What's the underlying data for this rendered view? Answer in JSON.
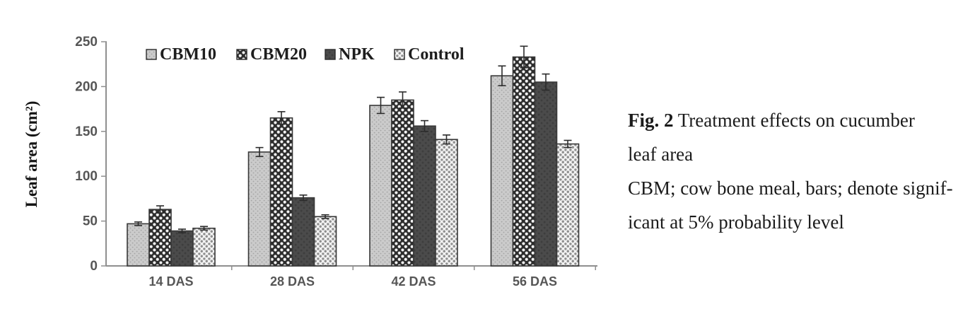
{
  "figure": {
    "fig_label": "Fig. 2",
    "title_rest": " Treatment effects on cucumber",
    "line2": "leaf area",
    "line3": "CBM; cow bone meal, bars; denote signif-",
    "line4": "icant at 5% probability level"
  },
  "chart_data": {
    "type": "bar",
    "title": "",
    "xlabel": "",
    "ylabel": "Leaf area (cm²)",
    "ylim": [
      0,
      250
    ],
    "yticks": [
      0,
      50,
      100,
      150,
      200,
      250
    ],
    "categories": [
      "14 DAS",
      "28 DAS",
      "42 DAS",
      "56 DAS"
    ],
    "series": [
      {
        "name": "CBM10",
        "values": [
          47,
          127,
          179,
          212
        ],
        "errors": [
          2,
          5,
          9,
          11
        ],
        "style": {
          "base": "#cbcbcb",
          "dot": "#a3a3a3",
          "dot_r": 0.9,
          "tile": 6
        }
      },
      {
        "name": "CBM20",
        "values": [
          63,
          165,
          185,
          233
        ],
        "errors": [
          4,
          7,
          9,
          12
        ],
        "style": {
          "base": "#2d2d2d",
          "dot": "#f2f2f2",
          "dot_r": 2.1,
          "tile": 9
        }
      },
      {
        "name": "NPK",
        "values": [
          39,
          76,
          156,
          205
        ],
        "errors": [
          2,
          3,
          6,
          9
        ],
        "style": {
          "base": "#4b4b4b",
          "dot": "#3e3e3e",
          "dot_r": 1.5,
          "tile": 8
        }
      },
      {
        "name": "Control",
        "values": [
          42,
          55,
          141,
          136
        ],
        "errors": [
          2,
          2,
          5,
          4
        ],
        "style": {
          "base": "#f3f3f3",
          "dot": "#8e8e8e",
          "dot_r": 1.7,
          "tile": 7
        }
      }
    ],
    "legend_position": "top",
    "grid": false,
    "error_bars": true
  },
  "style": {
    "axis_color": "#8f8f8f",
    "tick_text_color": "#565656",
    "bar_outline": "#383838",
    "error_bar_color": "#2b2b2b",
    "legend_text_color": "#1e1e1e"
  }
}
